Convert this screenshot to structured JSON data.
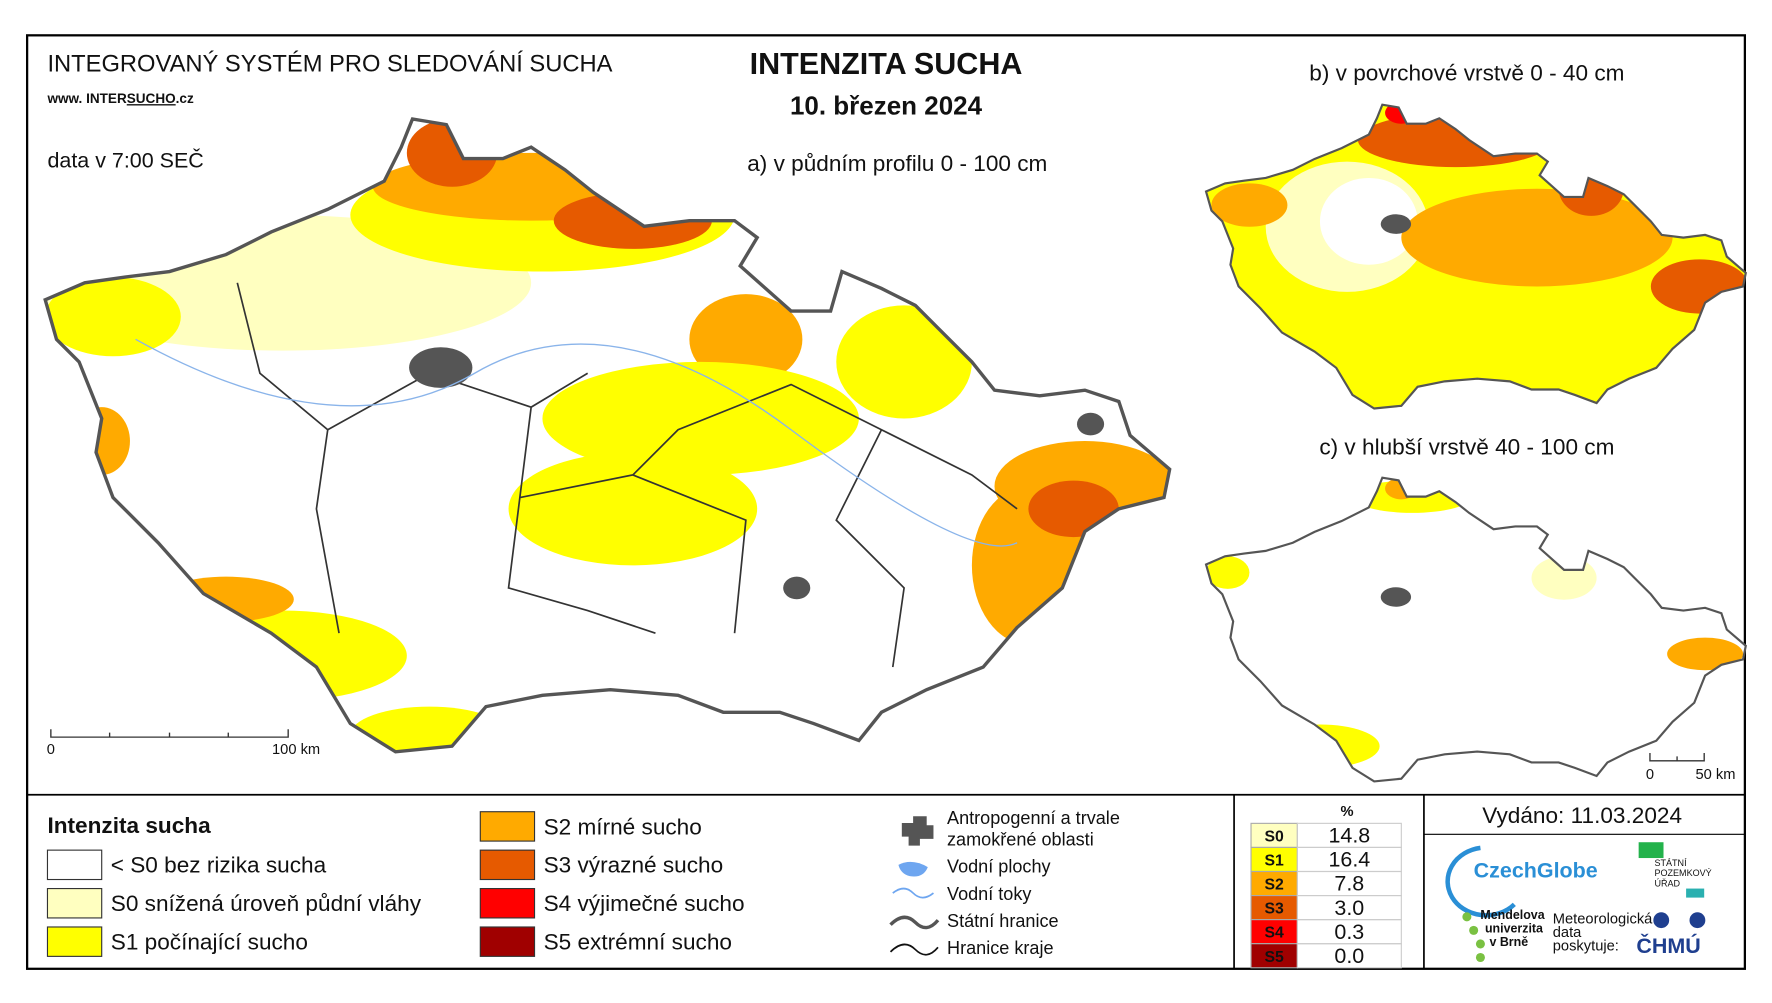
{
  "header": {
    "system": "INTEGROVANÝ SYSTÉM PRO SLEDOVÁNÍ SUCHA",
    "website_prefix": "www. INTER",
    "website_highlight": "SUCHO",
    "website_suffix": ".cz",
    "data_time": "data v 7:00 SEČ",
    "title": "INTENZITA SUCHA",
    "date": "10. březen 2024"
  },
  "maps": {
    "main": {
      "label": "a) v půdním profilu 0 - 100 cm",
      "scale_start": "0",
      "scale_end": "100 km"
    },
    "surface": {
      "label": "b) v povrchové vrstvě 0 - 40 cm"
    },
    "deep": {
      "label": "c) v hlubší vrstvě 40 - 100 cm",
      "scale_start": "0",
      "scale_end": "50 km"
    }
  },
  "legend": {
    "title": "Intenzita sucha",
    "classes": [
      {
        "label": "< S0 bez rizika sucha",
        "color": "#ffffff"
      },
      {
        "label": "S0 snížená úroveň půdní vláhy",
        "color": "#ffffc0"
      },
      {
        "label": "S1 počínající sucho",
        "color": "#ffff00"
      },
      {
        "label": "S2 mírné sucho",
        "color": "#ffaa00"
      },
      {
        "label": "S3 výrazné sucho",
        "color": "#e65a00"
      },
      {
        "label": "S4 výjimečné sucho",
        "color": "#ff0000"
      },
      {
        "label": "S5 extrémní sucho",
        "color": "#a00000"
      }
    ]
  },
  "features": {
    "anthropogenic": "Antropogenní a trvale",
    "anthropogenic_2": "zamokřené oblasti",
    "water_bodies": "Vodní plochy",
    "streams": "Vodní toky",
    "state_border": "Státní hranice",
    "region_border": "Hranice kraje"
  },
  "stats": {
    "header": "%",
    "rows": [
      {
        "code": "S0",
        "value": "14.8",
        "color": "#ffffc0"
      },
      {
        "code": "S1",
        "value": "16.4",
        "color": "#ffff00"
      },
      {
        "code": "S2",
        "value": "7.8",
        "color": "#ffaa00"
      },
      {
        "code": "S3",
        "value": "3.0",
        "color": "#e65a00"
      },
      {
        "code": "S4",
        "value": "0.3",
        "color": "#ff0000"
      },
      {
        "code": "S5",
        "value": "0.0",
        "color": "#a00000"
      }
    ]
  },
  "issued": "Vydáno: 11.03.2024",
  "logos": {
    "czechglobe": "CzechGlobe",
    "spu_1": "STÁTNÍ",
    "spu_2": "POZEMKOVÝ",
    "spu_3": "ÚŘAD",
    "mendel_1": "Mendelova",
    "mendel_2": "univerzita",
    "mendel_3": "v Brně",
    "meteo_1": "Meteorologická",
    "meteo_2": "data",
    "meteo_3": "poskytuje:",
    "chmu": "ČHMÚ"
  }
}
